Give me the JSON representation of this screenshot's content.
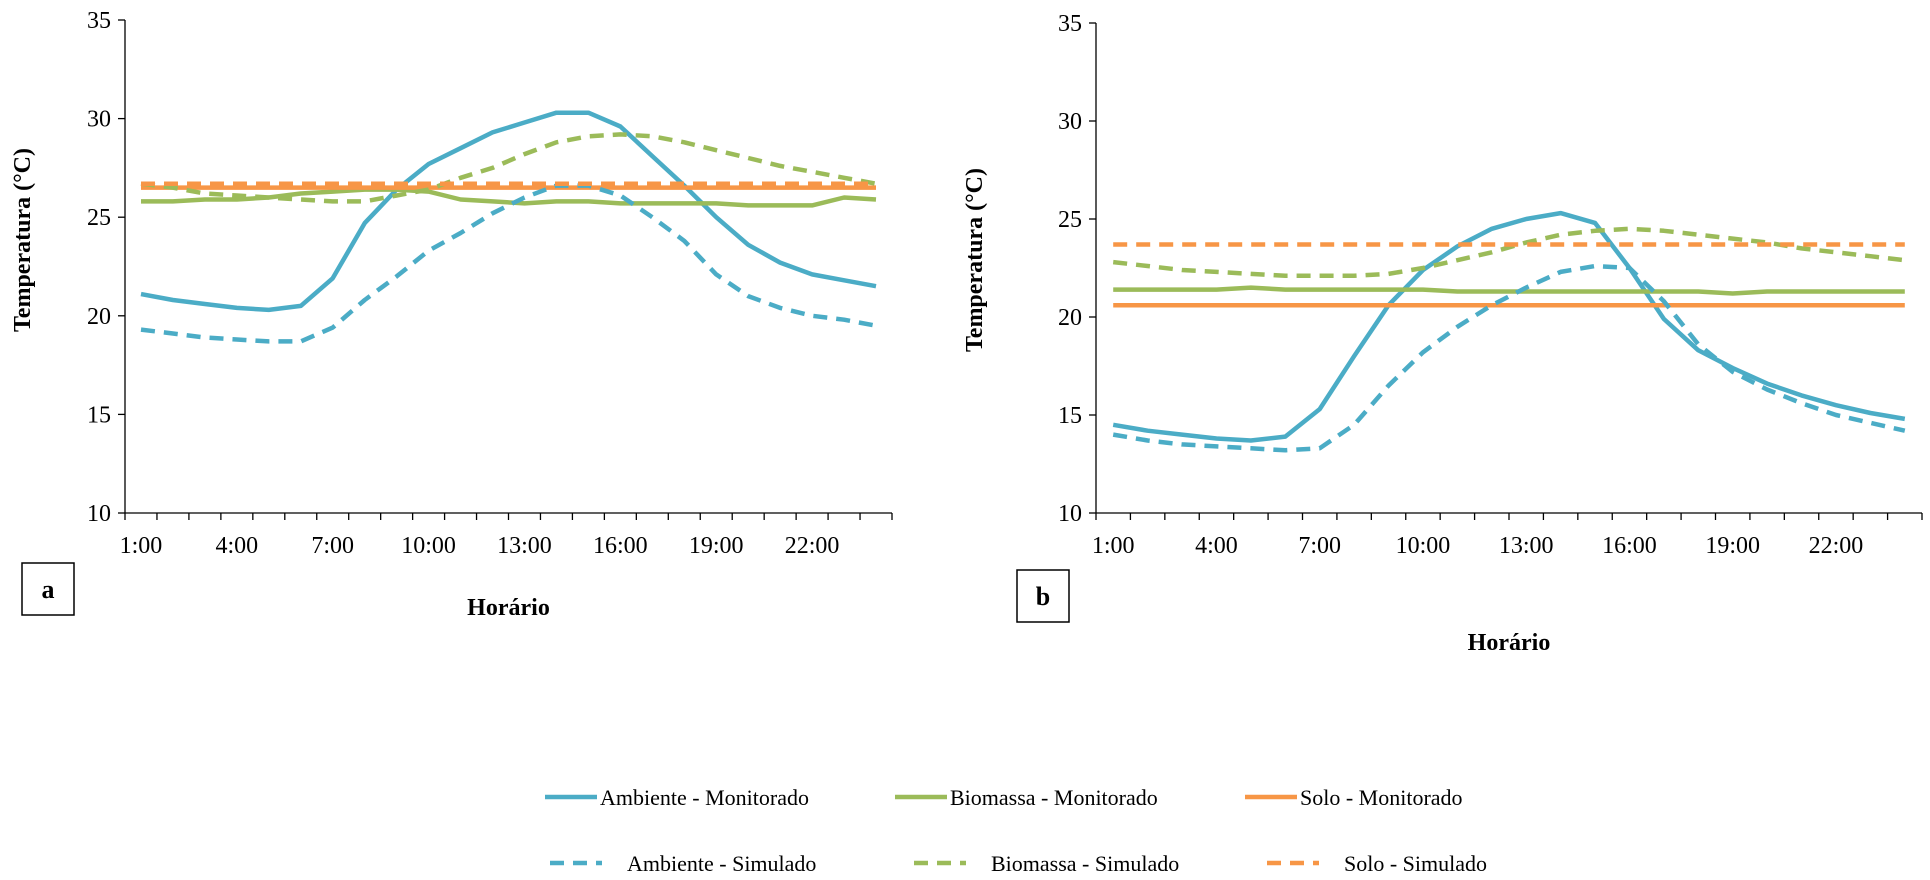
{
  "legend": {
    "items": [
      {
        "label": "Ambiente - Monitorado",
        "color": "#4bacc6",
        "dashed": false
      },
      {
        "label": "Biomassa - Monitorado",
        "color": "#9bbb59",
        "dashed": false
      },
      {
        "label": "Solo - Monitorado",
        "color": "#f79646",
        "dashed": false
      },
      {
        "label": "Ambiente - Simulado",
        "color": "#4bacc6",
        "dashed": true
      },
      {
        "label": "Biomassa - Simulado",
        "color": "#9bbb59",
        "dashed": true
      },
      {
        "label": "Solo - Simulado",
        "color": "#f79646",
        "dashed": true
      }
    ]
  },
  "chart_data": [
    {
      "type": "line",
      "panel_label": "a",
      "xlabel": "Horário",
      "ylabel": "Temperatura (°C)",
      "ylim": [
        10,
        35
      ],
      "yticks": [
        10,
        15,
        20,
        25,
        30,
        35
      ],
      "x": [
        "1:00",
        "2:00",
        "3:00",
        "4:00",
        "5:00",
        "6:00",
        "7:00",
        "8:00",
        "9:00",
        "10:00",
        "11:00",
        "12:00",
        "13:00",
        "14:00",
        "15:00",
        "16:00",
        "17:00",
        "18:00",
        "19:00",
        "20:00",
        "21:00",
        "22:00",
        "23:00",
        "24:00"
      ],
      "xtick_labels": [
        "1:00",
        "4:00",
        "7:00",
        "10:00",
        "13:00",
        "16:00",
        "19:00",
        "22:00"
      ],
      "grid": false,
      "series": [
        {
          "name": "Ambiente - Monitorado",
          "color": "#4bacc6",
          "dashed": false,
          "values": [
            21.1,
            20.8,
            20.6,
            20.4,
            20.3,
            20.5,
            21.9,
            24.7,
            26.4,
            27.7,
            28.5,
            29.3,
            29.8,
            30.3,
            30.3,
            29.6,
            28.1,
            26.6,
            25.0,
            23.6,
            22.7,
            22.1,
            21.8,
            21.5
          ]
        },
        {
          "name": "Biomassa - Monitorado",
          "color": "#9bbb59",
          "dashed": false,
          "values": [
            25.8,
            25.8,
            25.9,
            25.9,
            26.0,
            26.2,
            26.3,
            26.4,
            26.4,
            26.3,
            25.9,
            25.8,
            25.7,
            25.8,
            25.8,
            25.7,
            25.7,
            25.7,
            25.7,
            25.6,
            25.6,
            25.6,
            26.0,
            25.9
          ]
        },
        {
          "name": "Solo - Monitorado",
          "color": "#f79646",
          "dashed": false,
          "values": [
            26.5,
            26.5,
            26.5,
            26.5,
            26.5,
            26.5,
            26.5,
            26.5,
            26.5,
            26.5,
            26.5,
            26.5,
            26.5,
            26.5,
            26.5,
            26.5,
            26.5,
            26.5,
            26.5,
            26.5,
            26.5,
            26.5,
            26.5,
            26.5
          ]
        },
        {
          "name": "Ambiente - Simulado",
          "color": "#4bacc6",
          "dashed": true,
          "values": [
            19.3,
            19.1,
            18.9,
            18.8,
            18.7,
            18.7,
            19.4,
            20.8,
            22.0,
            23.3,
            24.2,
            25.2,
            26.0,
            26.6,
            26.6,
            26.1,
            25.0,
            23.8,
            22.1,
            21.0,
            20.4,
            20.0,
            19.8,
            19.5
          ]
        },
        {
          "name": "Biomassa - Simulado",
          "color": "#9bbb59",
          "dashed": true,
          "values": [
            26.7,
            26.5,
            26.2,
            26.1,
            26.0,
            25.9,
            25.8,
            25.8,
            26.1,
            26.4,
            27.0,
            27.5,
            28.2,
            28.8,
            29.1,
            29.2,
            29.1,
            28.8,
            28.4,
            28.0,
            27.6,
            27.3,
            27.0,
            26.7
          ]
        },
        {
          "name": "Solo - Simulado",
          "color": "#f79646",
          "dashed": true,
          "values": [
            26.7,
            26.7,
            26.7,
            26.7,
            26.7,
            26.7,
            26.7,
            26.7,
            26.7,
            26.7,
            26.7,
            26.7,
            26.7,
            26.7,
            26.7,
            26.7,
            26.7,
            26.7,
            26.7,
            26.7,
            26.7,
            26.7,
            26.7,
            26.7
          ]
        }
      ]
    },
    {
      "type": "line",
      "panel_label": "b",
      "xlabel": "Horário",
      "ylabel": "Temperatura (°C)",
      "ylim": [
        10,
        35
      ],
      "yticks": [
        10,
        15,
        20,
        25,
        30,
        35
      ],
      "x": [
        "1:00",
        "2:00",
        "3:00",
        "4:00",
        "5:00",
        "6:00",
        "7:00",
        "8:00",
        "9:00",
        "10:00",
        "11:00",
        "12:00",
        "13:00",
        "14:00",
        "15:00",
        "16:00",
        "17:00",
        "18:00",
        "19:00",
        "20:00",
        "21:00",
        "22:00",
        "23:00",
        "24:00"
      ],
      "xtick_labels": [
        "1:00",
        "4:00",
        "7:00",
        "10:00",
        "13:00",
        "16:00",
        "19:00",
        "22:00"
      ],
      "grid": false,
      "series": [
        {
          "name": "Ambiente - Monitorado",
          "color": "#4bacc6",
          "dashed": false,
          "values": [
            14.5,
            14.2,
            14.0,
            13.8,
            13.7,
            13.9,
            15.3,
            18.0,
            20.6,
            22.4,
            23.6,
            24.5,
            25.0,
            25.3,
            24.8,
            22.5,
            19.9,
            18.3,
            17.4,
            16.6,
            16.0,
            15.5,
            15.1,
            14.8
          ]
        },
        {
          "name": "Biomassa - Monitorado",
          "color": "#9bbb59",
          "dashed": false,
          "values": [
            21.4,
            21.4,
            21.4,
            21.4,
            21.5,
            21.4,
            21.4,
            21.4,
            21.4,
            21.4,
            21.3,
            21.3,
            21.3,
            21.3,
            21.3,
            21.3,
            21.3,
            21.3,
            21.2,
            21.3,
            21.3,
            21.3,
            21.3,
            21.3
          ]
        },
        {
          "name": "Solo - Monitorado",
          "color": "#f79646",
          "dashed": false,
          "values": [
            20.6,
            20.6,
            20.6,
            20.6,
            20.6,
            20.6,
            20.6,
            20.6,
            20.6,
            20.6,
            20.6,
            20.6,
            20.6,
            20.6,
            20.6,
            20.6,
            20.6,
            20.6,
            20.6,
            20.6,
            20.6,
            20.6,
            20.6,
            20.6
          ]
        },
        {
          "name": "Ambiente - Simulado",
          "color": "#4bacc6",
          "dashed": true,
          "values": [
            14.0,
            13.7,
            13.5,
            13.4,
            13.3,
            13.2,
            13.3,
            14.5,
            16.5,
            18.2,
            19.5,
            20.6,
            21.5,
            22.3,
            22.6,
            22.5,
            20.8,
            18.6,
            17.2,
            16.3,
            15.6,
            15.0,
            14.6,
            14.2
          ]
        },
        {
          "name": "Biomassa - Simulado",
          "color": "#9bbb59",
          "dashed": true,
          "values": [
            22.8,
            22.6,
            22.4,
            22.3,
            22.2,
            22.1,
            22.1,
            22.1,
            22.2,
            22.5,
            22.9,
            23.3,
            23.8,
            24.2,
            24.4,
            24.5,
            24.4,
            24.2,
            24.0,
            23.8,
            23.5,
            23.3,
            23.1,
            22.9
          ]
        },
        {
          "name": "Solo - Simulado",
          "color": "#f79646",
          "dashed": true,
          "values": [
            23.7,
            23.7,
            23.7,
            23.7,
            23.7,
            23.7,
            23.7,
            23.7,
            23.7,
            23.7,
            23.7,
            23.7,
            23.7,
            23.7,
            23.7,
            23.7,
            23.7,
            23.7,
            23.7,
            23.7,
            23.7,
            23.7,
            23.7,
            23.7
          ]
        }
      ]
    }
  ]
}
